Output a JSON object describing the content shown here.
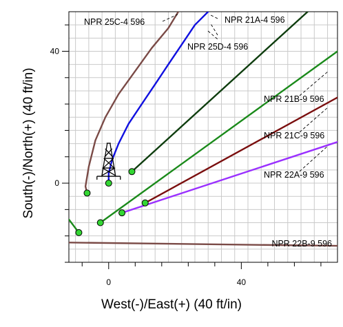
{
  "chart_data": {
    "type": "scatter",
    "xlabel": "West(-)/East(+) (40 ft/in)",
    "ylabel": "South(-)/North(+) (40 ft/in)",
    "xlim": [
      -12,
      69
    ],
    "ylim": [
      -24,
      52
    ],
    "x_ticks": [
      0,
      40
    ],
    "y_ticks": [
      0,
      40
    ],
    "grid": true,
    "series": [
      {
        "name": "NPR 25C-4 596",
        "color": "#7a4a46",
        "points": [
          [
            -6.5,
            -3
          ],
          [
            -7,
            -1
          ],
          [
            -6,
            5
          ],
          [
            -4,
            13
          ],
          [
            -1,
            20
          ],
          [
            3,
            27
          ],
          [
            8,
            34
          ],
          [
            13,
            41
          ],
          [
            18,
            47
          ],
          [
            21,
            52
          ]
        ],
        "marker": [
          -6.5,
          -3
        ]
      },
      {
        "name": "NPR 25D-4 596",
        "color": "#1010e0",
        "points": [
          [
            0,
            0
          ],
          [
            0,
            3
          ],
          [
            1,
            7
          ],
          [
            3,
            12
          ],
          [
            6,
            18
          ],
          [
            10,
            24
          ],
          [
            14,
            30
          ],
          [
            18,
            36
          ],
          [
            22,
            42
          ],
          [
            26,
            48
          ],
          [
            30,
            52
          ]
        ],
        "marker": [
          0,
          0
        ]
      },
      {
        "name": "NPR 21A-4 596",
        "color": "#0e3d0e",
        "points": [
          [
            7,
            3.5
          ],
          [
            60,
            52
          ]
        ],
        "marker": [
          7,
          3.5
        ]
      },
      {
        "name": "NPR 21B-9 596",
        "color": "#1a8a1a",
        "points": [
          [
            -2.5,
            -12
          ],
          [
            69,
            40
          ]
        ],
        "marker": [
          -2.5,
          -12
        ]
      },
      {
        "name": "NPR 21C-9 596",
        "color": "#7a0e0e",
        "points": [
          [
            11,
            -6
          ],
          [
            69,
            26
          ]
        ],
        "marker": [
          11,
          -6
        ]
      },
      {
        "name": "NPR 22A-9 596",
        "color": "#9a30ff",
        "points": [
          [
            4,
            -9
          ],
          [
            69,
            12.5
          ]
        ],
        "marker": [
          4,
          -9
        ]
      },
      {
        "name": "NPR 22B-9 596",
        "color": "#7a4a46",
        "points": [
          [
            -12,
            -18
          ],
          [
            69,
            -19
          ]
        ],
        "marker": null
      },
      {
        "name": "",
        "color": "#1a8a1a",
        "points": [
          [
            -12,
            -11
          ],
          [
            -9,
            -15
          ]
        ],
        "marker": [
          -9,
          -15
        ]
      }
    ],
    "annotations": [
      {
        "text": "NPR 25C-4 596"
      },
      {
        "text": "NPR 21A-4 596"
      },
      {
        "text": "NPR 25D-4 596"
      },
      {
        "text": "NPR 21B-9 596"
      },
      {
        "text": "NPR 21C-9 596"
      },
      {
        "text": "NPR 22A-9 596"
      },
      {
        "text": "NPR 22B-9 596"
      }
    ],
    "symbols": [
      {
        "type": "drilling-rig",
        "at": [
          0,
          0
        ]
      }
    ]
  }
}
